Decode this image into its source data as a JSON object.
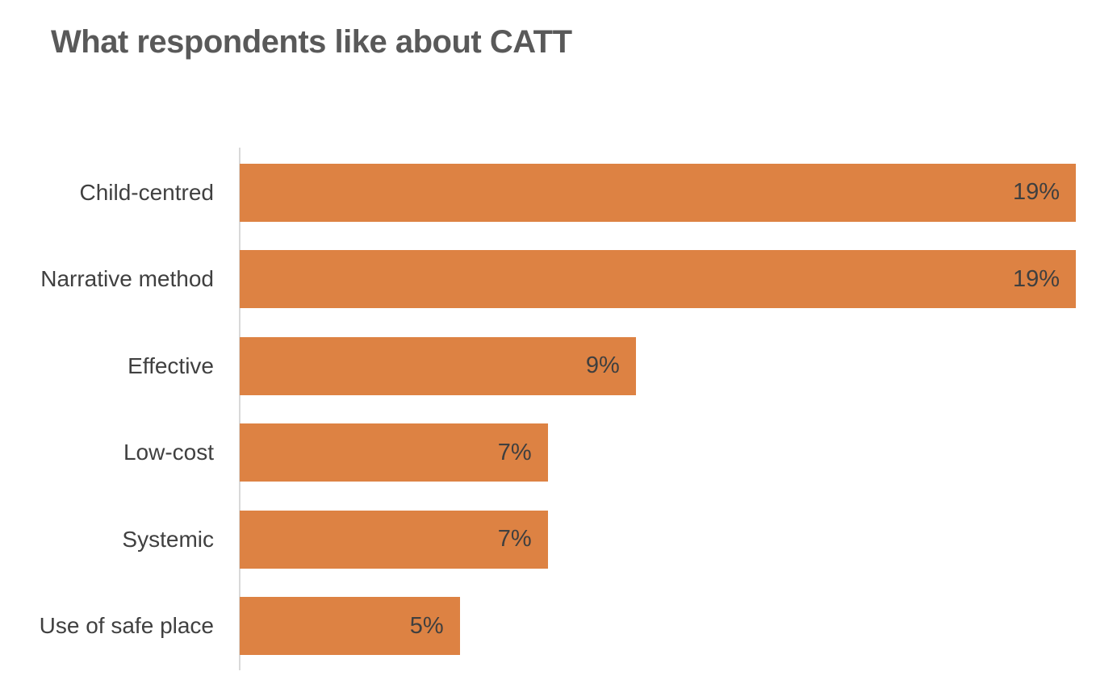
{
  "page": {
    "background_color": "#ffffff"
  },
  "chart_data": {
    "type": "bar",
    "orientation": "horizontal",
    "title": "What respondents like about CATT",
    "categories": [
      "Child-centred",
      "Narrative method",
      "Effective",
      "Low-cost",
      "Systemic",
      "Use of safe place"
    ],
    "values": [
      19,
      19,
      9,
      7,
      7,
      5
    ],
    "value_labels": [
      "19%",
      "19%",
      "9%",
      "7%",
      "7%",
      "5%"
    ],
    "xlabel": "",
    "ylabel": "",
    "xlim": [
      0,
      19
    ],
    "grid": false,
    "legend": false,
    "bar_color": "#DD8243",
    "title_color": "#595959",
    "category_label_color": "#404040",
    "value_label_color": "#3f3f3f",
    "axis_line_color": "#D9D9D9"
  }
}
